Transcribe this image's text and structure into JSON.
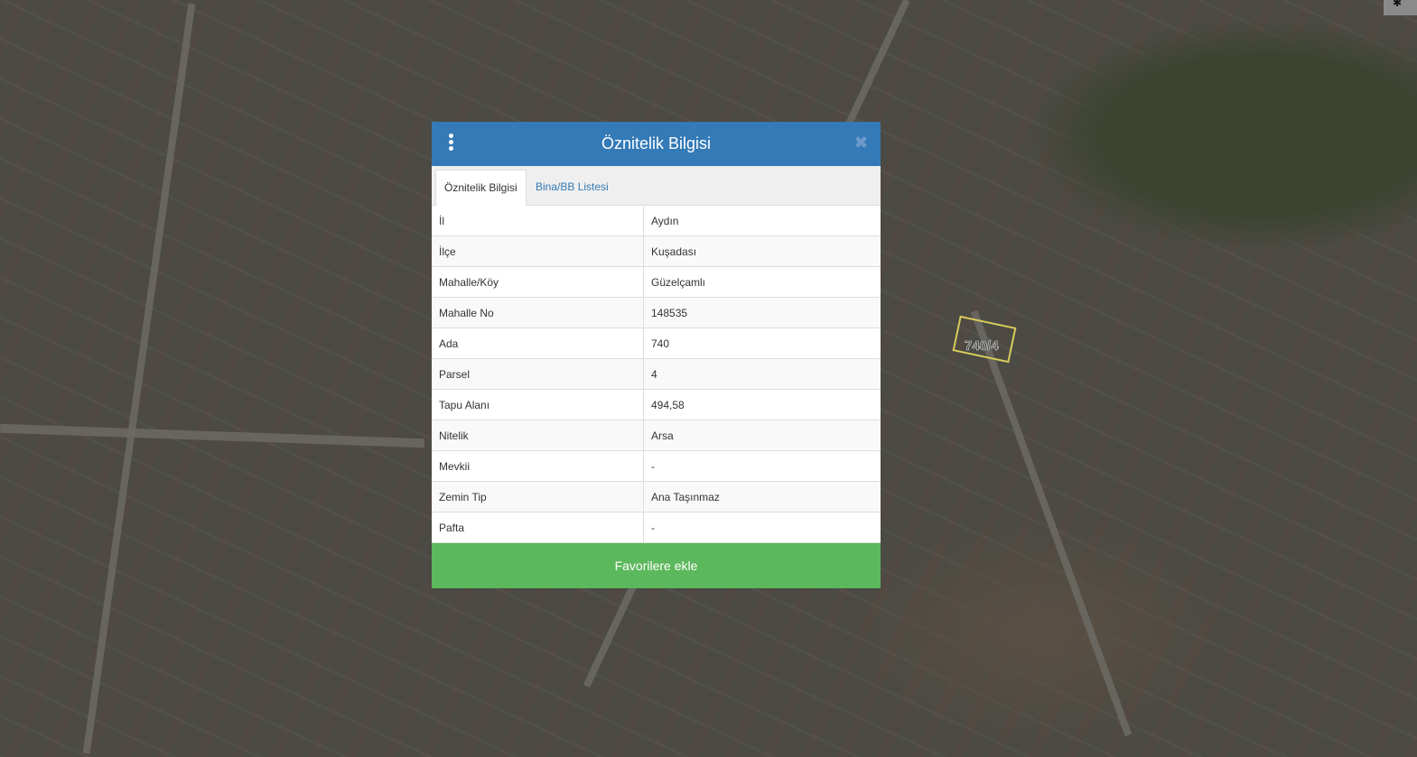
{
  "map": {
    "parcel_label": "740/4"
  },
  "dialog": {
    "title": "Öznitelik Bilgisi",
    "tabs": [
      {
        "label": "Öznitelik Bilgisi",
        "active": true
      },
      {
        "label": "Bina/BB Listesi",
        "active": false
      }
    ],
    "rows": [
      {
        "key": "İl",
        "value": "Aydın"
      },
      {
        "key": "İlçe",
        "value": "Kuşadası"
      },
      {
        "key": "Mahalle/Köy",
        "value": "Güzelçamlı"
      },
      {
        "key": "Mahalle No",
        "value": "148535"
      },
      {
        "key": "Ada",
        "value": "740"
      },
      {
        "key": "Parsel",
        "value": "4"
      },
      {
        "key": "Tapu Alanı",
        "value": "494,58"
      },
      {
        "key": "Nitelik",
        "value": "Arsa"
      },
      {
        "key": "Mevkii",
        "value": "-"
      },
      {
        "key": "Zemin Tip",
        "value": "Ana Taşınmaz"
      },
      {
        "key": "Pafta",
        "value": "-"
      }
    ],
    "favorite_label": "Favorilere ekle",
    "colors": {
      "header": "#337ab7",
      "favorite": "#5cb85c"
    }
  }
}
